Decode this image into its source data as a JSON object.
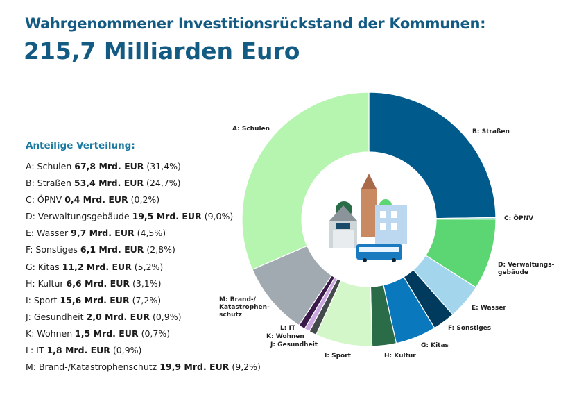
{
  "header": {
    "title": "Wahrgenommener Investitionsrückstand der Kommunen:",
    "total": "215,7 Milliarden Euro"
  },
  "legend_heading": "Anteilige Verteilung:",
  "chart_data": {
    "type": "pie",
    "donut": true,
    "start": "top",
    "direction": "clockwise",
    "unit": "Mrd. EUR",
    "items": [
      {
        "key": "B",
        "label": "B: Straßen",
        "name": "Straßen",
        "value": 53.4,
        "pct": "24,7%",
        "value_text": "53,4 Mrd. EUR",
        "color": "#005a8c"
      },
      {
        "key": "C",
        "label": "C: ÖPNV",
        "name": "ÖPNV",
        "value": 0.4,
        "pct": "0,2%",
        "value_text": "0,4 Mrd. EUR",
        "color": "#8fd6d0"
      },
      {
        "key": "D",
        "label": "D: Verwaltungs-gebäude",
        "name": "Verwaltungsgebäude",
        "value": 19.5,
        "pct": "9,0%",
        "value_text": "19,5 Mrd. EUR",
        "color": "#5cd672"
      },
      {
        "key": "E",
        "label": "E: Wasser",
        "name": "Wasser",
        "value": 9.7,
        "pct": "4,5%",
        "value_text": "9,7 Mrd. EUR",
        "color": "#a3d5ec"
      },
      {
        "key": "F",
        "label": "F: Sonstiges",
        "name": "Sonstiges",
        "value": 6.1,
        "pct": "2,8%",
        "value_text": "6,1 Mrd. EUR",
        "color": "#003a5c"
      },
      {
        "key": "G",
        "label": "G: Kitas",
        "name": "Kitas",
        "value": 11.2,
        "pct": "5,2%",
        "value_text": "11,2 Mrd. EUR",
        "color": "#0a78bc"
      },
      {
        "key": "H",
        "label": "H: Kultur",
        "name": "Kultur",
        "value": 6.6,
        "pct": "3,1%",
        "value_text": "6,6 Mrd. EUR",
        "color": "#2a6b48"
      },
      {
        "key": "I",
        "label": "I: Sport",
        "name": "Sport",
        "value": 15.6,
        "pct": "7,2%",
        "value_text": "15,6 Mrd. EUR",
        "color": "#d4f7c9"
      },
      {
        "key": "J",
        "label": "J: Gesundheit",
        "name": "Gesundheit",
        "value": 2.0,
        "pct": "0,9%",
        "value_text": "2,0 Mrd. EUR",
        "color": "#444a4c"
      },
      {
        "key": "K",
        "label": "K: Wohnen",
        "name": "Wohnen",
        "value": 1.5,
        "pct": "0,7%",
        "value_text": "1,5 Mrd. EUR",
        "color": "#cba8e2"
      },
      {
        "key": "L",
        "label": "L: IT",
        "name": "IT",
        "value": 1.8,
        "pct": "0,9%",
        "value_text": "1,8 Mrd. EUR",
        "color": "#3a1a48"
      },
      {
        "key": "M",
        "label": "M: Brand-/ Katastrophen-schutz",
        "name": "Brand-/Katastrophenschutz",
        "value": 19.9,
        "pct": "9,2%",
        "value_text": "19,9 Mrd. EUR",
        "color": "#a0aab0"
      },
      {
        "key": "A",
        "label": "A: Schulen",
        "name": "Schulen",
        "value": 67.8,
        "pct": "31,4%",
        "value_text": "67,8 Mrd. EUR",
        "color": "#b6f5b0"
      }
    ]
  },
  "legend_order": [
    "A",
    "B",
    "C",
    "D",
    "E",
    "F",
    "G",
    "H",
    "I",
    "J",
    "K",
    "L",
    "M"
  ]
}
